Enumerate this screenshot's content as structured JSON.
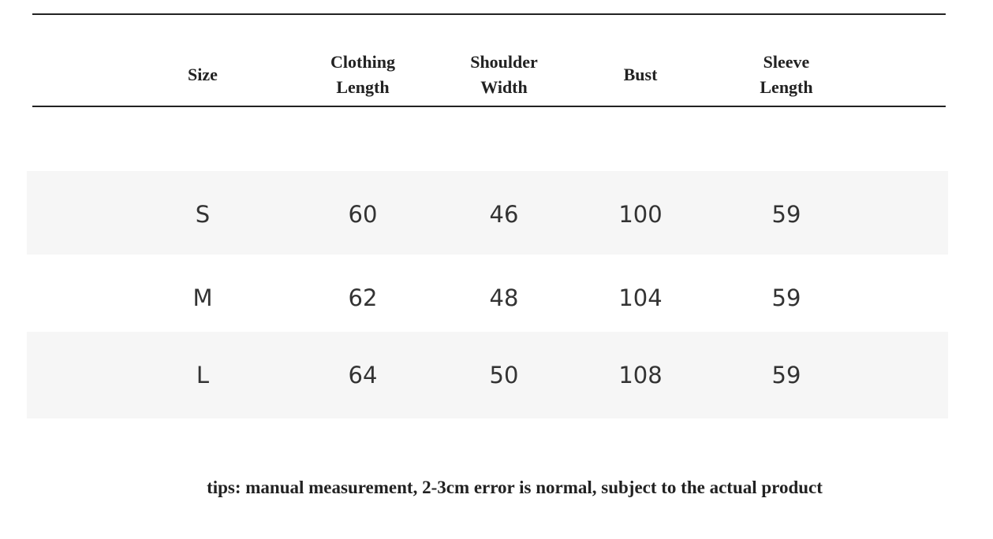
{
  "table": {
    "header": [
      "Size",
      "Clothing\nLength",
      "Shoulder\nWidth",
      "Bust",
      "Sleeve\nLength"
    ],
    "rows": [
      [
        "S",
        60,
        46,
        100,
        59
      ],
      [
        "M",
        62,
        48,
        104,
        59
      ],
      [
        "L",
        64,
        50,
        108,
        59
      ]
    ]
  },
  "note": "tips: manual measurement, 2-3cm error is normal, subject to the actual product"
}
